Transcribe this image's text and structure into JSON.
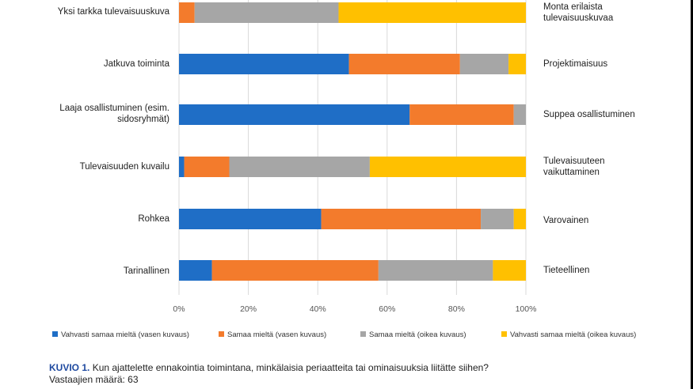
{
  "chart_data": {
    "type": "bar",
    "orientation": "horizontal",
    "stacked": "percent",
    "title": "",
    "xlabel": "",
    "ylabel": "",
    "xlim": [
      0,
      100
    ],
    "x_ticks": [
      "0%",
      "20%",
      "40%",
      "60%",
      "80%",
      "100%"
    ],
    "grid": true,
    "legend_position": "bottom",
    "categories": [
      {
        "left": "Yksi tarkka tulevaisuuskuva",
        "right": "Monta erilaista tulevaisuuskuvaa"
      },
      {
        "left": "Jatkuva toiminta",
        "right": "Projektimaisuus"
      },
      {
        "left": "Laaja osallistuminen (esim. sidosryhmät)",
        "right": "Suppea osallistuminen"
      },
      {
        "left": "Tulevaisuuden kuvailu",
        "right": "Tulevaisuuteen vaikuttaminen"
      },
      {
        "left": "Rohkea",
        "right": "Varovainen"
      },
      {
        "left": "Tarinallinen",
        "right": "Tieteellinen"
      }
    ],
    "series": [
      {
        "name": "Vahvasti samaa mieltä (vasen kuvaus)",
        "color": "#1f6ec6",
        "values": [
          0,
          49,
          66.5,
          1.5,
          41,
          9.5
        ]
      },
      {
        "name": "Samaa mieltä (vasen kuvaus)",
        "color": "#f37b2c",
        "values": [
          4.5,
          32,
          30,
          13,
          46,
          48
        ]
      },
      {
        "name": "Samaa mieltä (oikea kuvaus)",
        "color": "#a6a6a6",
        "values": [
          41.5,
          14,
          3.5,
          40.5,
          9.5,
          33
        ]
      },
      {
        "name": "Vahvasti samaa mieltä (oikea kuvaus)",
        "color": "#ffc000",
        "values": [
          54,
          5,
          0,
          45,
          3.5,
          9.5
        ]
      }
    ]
  },
  "caption": {
    "label": "KUVIO 1.",
    "text": " Kun ajattelette ennakointia toimintana, minkälaisia periaatteita tai ominaisuuksia liitätte siihen?",
    "respondents": "Vastaajien määrä: 63"
  }
}
